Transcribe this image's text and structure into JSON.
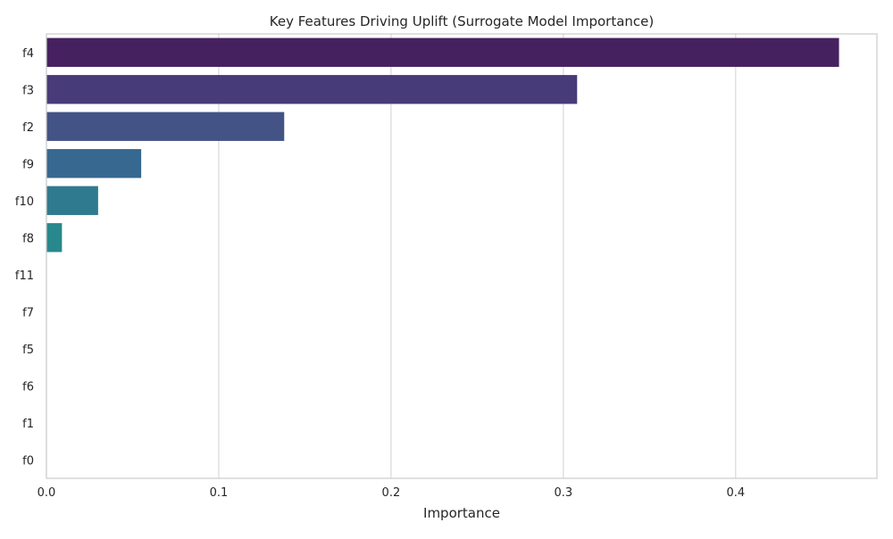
{
  "chart_data": {
    "type": "bar",
    "orientation": "horizontal",
    "title": "Key Features Driving Uplift (Surrogate Model Importance)",
    "xlabel": "Importance",
    "ylabel": "",
    "categories": [
      "f4",
      "f3",
      "f2",
      "f9",
      "f10",
      "f8",
      "f11",
      "f7",
      "f5",
      "f6",
      "f1",
      "f0"
    ],
    "values": [
      0.46,
      0.308,
      0.138,
      0.055,
      0.03,
      0.009,
      0,
      0,
      0,
      0,
      0,
      0
    ],
    "colors": [
      "#46215f",
      "#483b7a",
      "#435386",
      "#37688f",
      "#2f7a8e",
      "#28888b",
      "#21918c",
      "#21918c",
      "#21918c",
      "#21918c",
      "#21918c",
      "#21918c"
    ],
    "xlim": [
      0,
      0.482
    ],
    "xticks": [
      0.0,
      0.1,
      0.2,
      0.3,
      0.4
    ],
    "xtick_labels": [
      "0.0",
      "0.1",
      "0.2",
      "0.3",
      "0.4"
    ],
    "grid": "vertical",
    "legend": "none"
  }
}
